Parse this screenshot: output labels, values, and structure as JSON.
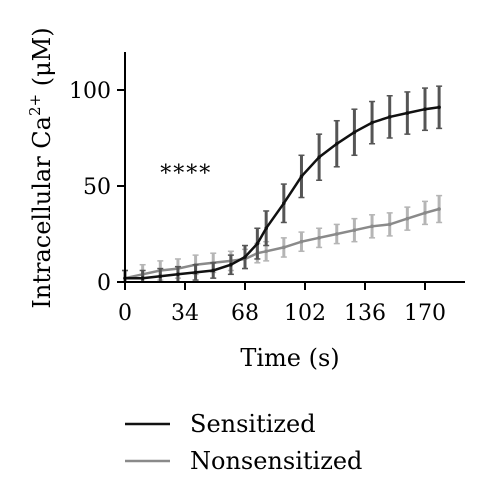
{
  "chart_data": {
    "type": "line",
    "title": "",
    "xlabel": "Time (s)",
    "ylabel": "Intracellular Ca",
    "ylabel_sup": "2+",
    "ylabel_unit": " (μM)",
    "xlim": [
      0,
      190
    ],
    "ylim": [
      0,
      120
    ],
    "x_ticks": [
      0,
      34,
      68,
      102,
      136,
      170
    ],
    "y_ticks": [
      0,
      50,
      100
    ],
    "annotation": "****",
    "annotation_pos": {
      "x": 20,
      "y": 57
    },
    "grid": false,
    "legend": "bottom",
    "x": [
      0,
      10,
      20,
      30,
      40,
      50,
      60,
      68,
      75,
      80,
      90,
      100,
      110,
      120,
      130,
      140,
      150,
      160,
      170,
      178
    ],
    "series": [
      {
        "name": "Sensitized",
        "color": "#111111",
        "error_color": "#555555",
        "values": [
          2,
          2,
          3,
          4,
          5,
          6,
          9,
          13,
          20,
          28,
          41,
          55,
          65,
          72,
          78,
          83,
          86,
          88,
          90,
          91
        ],
        "error": [
          4,
          4,
          4,
          4,
          4,
          4,
          5,
          6,
          8,
          9,
          10,
          11,
          12,
          12,
          12,
          11,
          11,
          11,
          11,
          11
        ]
      },
      {
        "name": "Nonsensitized",
        "color": "#8a8a8a",
        "error_color": "#b5b5b5",
        "values": [
          2,
          4,
          6,
          7,
          9,
          10,
          11,
          12,
          15,
          16,
          18,
          21,
          23,
          25,
          27,
          29,
          30,
          33,
          36,
          38
        ],
        "error": [
          4,
          5,
          5,
          5,
          5,
          5,
          5,
          5,
          5,
          5,
          5,
          5,
          5,
          5,
          6,
          6,
          6,
          6,
          6,
          7
        ]
      }
    ]
  }
}
